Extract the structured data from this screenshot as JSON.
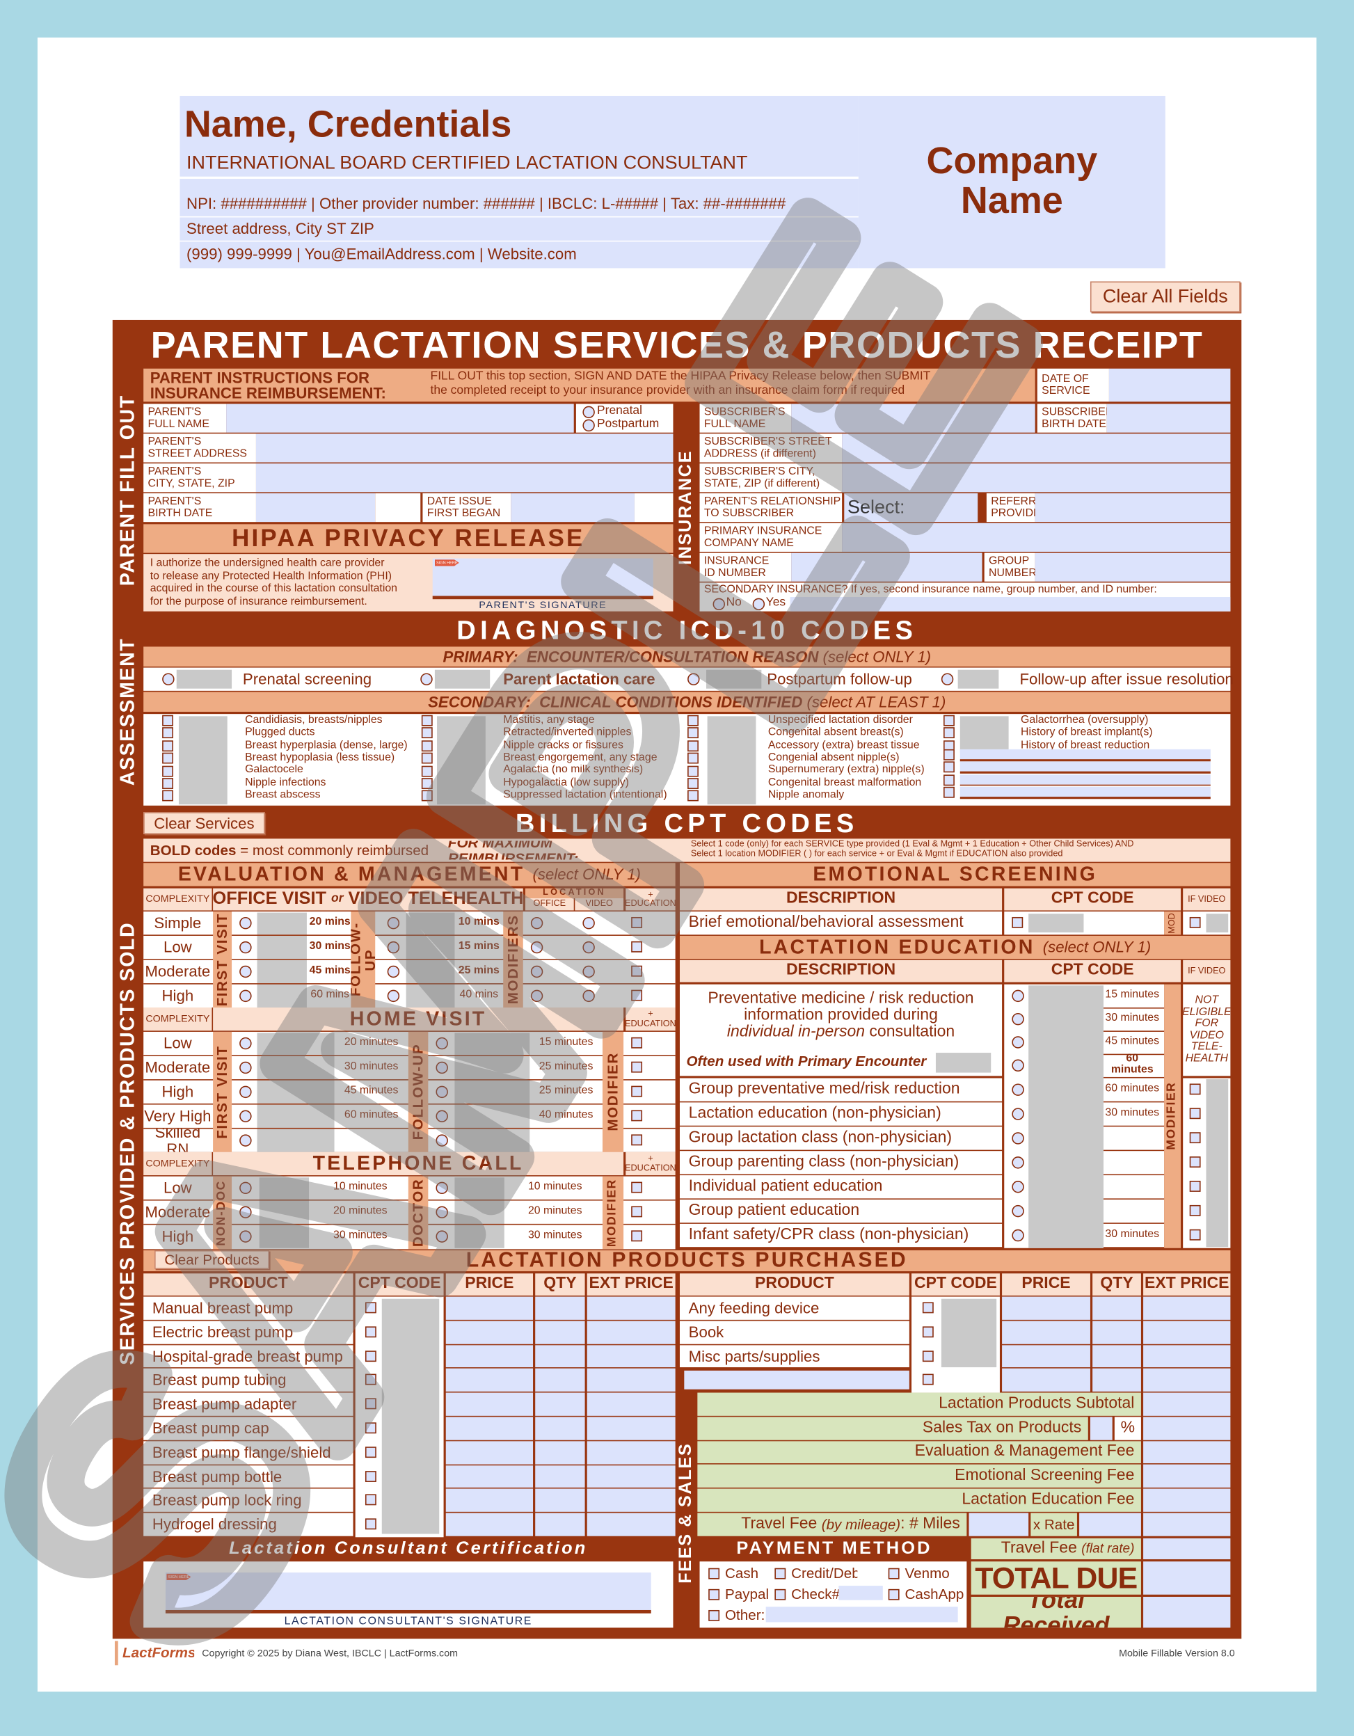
{
  "header": {
    "name": "Name, Credentials",
    "credentials": "INTERNATIONAL BOARD CERTIFIED LACTATION CONSULTANT",
    "ids": "NPI: ########## | Other provider number: ###### | IBCLC: L-##### | Tax:  ##-#######",
    "address": "Street address, City ST ZIP",
    "contact": "(999) 999-9999 | You@EmailAddress.com | Website.com"
  },
  "company": {
    "name": "Company\nName"
  },
  "buttons": {
    "clear_all": "Clear All Fields",
    "clear_services": "Clear Services",
    "clear_products": "Clear Products"
  },
  "title": "PARENT LACTATION SERVICES & PRODUCTS RECEIPT",
  "side": {
    "parent": "PARENT FILL OUT",
    "assessment": "ASSESSMENT",
    "services": "SERVICES PROVIDED & PRODUCTS SOLD",
    "insurance": "INSURANCE",
    "fees": "FEES & SALES"
  },
  "parent": {
    "instr_title": "PARENT INSTRUCTIONS FOR\nINSURANCE REIMBURSEMENT:",
    "instr_1": "FILL OUT this top section, SIGN AND DATE the HIPAA Privacy Release below, then SUBMIT",
    "instr_2": "the completed receipt to your insurance provider with an insurance claim form if required",
    "date_of_service": "DATE OF\nSERVICE",
    "full_name": "PARENT'S\nFULL NAME",
    "prenatal": "Prenatal",
    "postpartum": "Postpartum",
    "street": "PARENT'S\nSTREET ADDRESS",
    "city": "PARENT'S\nCITY, STATE, ZIP",
    "birth": "PARENT'S\nBIRTH DATE",
    "issue": "DATE ISSUE\nFIRST BEGAN"
  },
  "hipaa": {
    "title": "HIPAA PRIVACY RELEASE",
    "text": "I authorize the undersigned health care provider\nto release any Protected Health Information (PHI)\nacquired in the course of this lactation consultation\nfor the purpose of insurance reimbursement.",
    "sign_here": "SIGN HERE",
    "signature_label": "PARENT'S SIGNATURE"
  },
  "insurance": {
    "subscriber_name": "SUBSCRIBER'S\nFULL NAME",
    "subscriber_birth": "SUBSCRIBER'S\nBIRTH DATE",
    "subscriber_street": "SUBSCRIBER'S STREET\nADDRESS (if different)",
    "subscriber_city": "SUBSCRIBER'S CITY,\nSTATE, ZIP (if different)",
    "relationship": "PARENT'S RELATIONSHIP\nTO SUBSCRIBER",
    "relationship_value": "Select:",
    "referring": "REFERRING\nPROVIDER",
    "primary_company": "PRIMARY INSURANCE\nCOMPANY NAME",
    "id_number": "INSURANCE\nID NUMBER",
    "group_number": "GROUP\nNUMBER",
    "secondary_prompt": "SECONDARY INSURANCE?  If yes, second insurance name, group number, and ID number:",
    "no": "No",
    "yes": "Yes"
  },
  "diagnostic": {
    "title": "DIAGNOSTIC ICD-10 CODES",
    "primary_label": "PRIMARY:  ENCOUNTER/CONSULTATION REASON ",
    "primary_note": "(select ONLY 1)",
    "primary_options": [
      "Prenatal screening",
      "Parent lactation care",
      "Postpartum follow-up",
      "Follow-up after issue resolution"
    ],
    "secondary_label": "SECONDARY:  CLINICAL CONDITIONS IDENTIFIED ",
    "secondary_note": "(select AT LEAST 1)",
    "secondary_columns": [
      [
        "Candidiasis, breasts/nipples",
        "Plugged ducts",
        "Breast hyperplasia (dense, large)",
        "Breast hypoplasia (less tissue)",
        "Galactocele",
        "Nipple infections",
        "Breast abscess"
      ],
      [
        "Mastitis, any stage",
        "Retracted/inverted nipples",
        "Nipple cracks or fissures",
        "Breast engorgement, any stage",
        "Agalactia (no milk synthesis)",
        "Hypogalactia (low supply)",
        "Suppressed lactation (intentional)"
      ],
      [
        "Unspecified lactation disorder",
        "Congenital absent breast(s)",
        "Accessory (extra) breast tissue",
        "Congenial absent nipple(s)",
        "Supernumerary (extra) nipple(s)",
        "Congenital breast malformation",
        "Nipple anomaly"
      ],
      [
        "Galactorrhea (oversupply)",
        "History of breast implant(s)",
        "History of breast reduction"
      ]
    ]
  },
  "billing": {
    "title": "BILLING CPT CODES",
    "bold_codes": "BOLD codes",
    "bold_note": " = most commonly reimbursed",
    "max_label": "FOR MAXIMUM REIMBURSEMENT:",
    "max_line_1": "Select 1 code (only) for each SERVICE type provided (1 Eval & Mgmt + 1 Education + Other Child Services) AND",
    "max_line_2": "Select 1 location MODIFIER (              ) for each service +        or Eval & Mgmt if EDUCATION also provided"
  },
  "em": {
    "title": "EVALUATION & MANAGEMENT ",
    "note": "(select ONLY 1)",
    "complexity": "COMPLEXITY",
    "plus_education": "+\nEDUCATION",
    "office": {
      "title_a": "OFFICE VISIT ",
      "title_or": "or",
      "title_b": " VIDEO TELEHEALTH",
      "location": "LOCATION",
      "office": "OFFICE",
      "video": "VIDEO",
      "first_visit": "FIRST VISIT",
      "follow_up": "FOLLOW-UP",
      "modifiers": "MODIFIERS",
      "rows": [
        {
          "label": "Simple",
          "first": "20 mins",
          "follow": "10 mins"
        },
        {
          "label": "Low",
          "first": "30 mins",
          "follow": "15 mins"
        },
        {
          "label": "Moderate",
          "first": "45 mins",
          "follow": "25 mins"
        },
        {
          "label": "High",
          "first": "60 mins",
          "follow": "40 mins"
        }
      ]
    },
    "home": {
      "title": "HOME VISIT",
      "first_visit": "FIRST VISIT",
      "follow_up": "FOLLOW-UP",
      "modifier": "MODIFIER",
      "rows": [
        {
          "label": "Low",
          "first": "20 minutes",
          "follow": "15 minutes"
        },
        {
          "label": "Moderate",
          "first": "30 minutes",
          "follow": "25 minutes"
        },
        {
          "label": "High",
          "first": "45 minutes",
          "follow": "25 minutes"
        },
        {
          "label": "Very High",
          "first": "60 minutes",
          "follow": "40 minutes"
        },
        {
          "label": "Skilled RN",
          "first": "",
          "follow": ""
        }
      ]
    },
    "telephone": {
      "title": "TELEPHONE CALL",
      "non_doc": "NON-DOC",
      "doctor": "DOCTOR",
      "modifier": "MODIFIER",
      "rows": [
        {
          "label": "Low",
          "first": "10 minutes",
          "follow": "10 minutes"
        },
        {
          "label": "Moderate",
          "first": "20 minutes",
          "follow": "20 minutes"
        },
        {
          "label": "High",
          "first": "30 minutes",
          "follow": "30 minutes"
        }
      ]
    }
  },
  "emotional": {
    "title": "EMOTIONAL SCREENING",
    "description": "DESCRIPTION",
    "cpt_code": "CPT CODE",
    "if_video": "IF VIDEO",
    "item": "Brief emotional/behavioral assessment",
    "mod": "MOD"
  },
  "education": {
    "title": "LACTATION EDUCATION ",
    "note": "(select ONLY 1)",
    "description": "DESCRIPTION",
    "cpt_code": "CPT CODE",
    "if_video": "IF VIDEO",
    "modifier": "MODIFIER",
    "prev_line_1": "Preventative medicine / risk reduction",
    "prev_line_2": "information provided during",
    "prev_line_3a": "individual in-person",
    "prev_line_3b": " consultation",
    "often_used": "Often used with Primary Encounter",
    "not_eligible": "NOT\nELIGIBLE\nFOR\nVIDEO\nTELE-\nHEALTH",
    "minutes": [
      "15 minutes",
      "30 minutes",
      "45 minutes",
      "60 minutes",
      "60 minutes",
      "30 minutes",
      "",
      "",
      "",
      "",
      "30 minutes"
    ],
    "items": [
      "Group preventative med/risk reduction",
      "Lactation education (non-physician)",
      "Group lactation class (non-physician)",
      "Group parenting class (non-physician)",
      "Individual patient education",
      "Group patient education",
      "Infant safety/CPR class (non-physician)"
    ]
  },
  "products": {
    "title": "LACTATION PRODUCTS PURCHASED",
    "columns": [
      "PRODUCT",
      "CPT CODE",
      "PRICE",
      "QTY",
      "EXT PRICE"
    ],
    "left_items": [
      "Manual breast pump",
      "Electric breast pump",
      "Hospital-grade breast pump",
      "Breast pump tubing",
      "Breast pump adapter",
      "Breast pump cap",
      "Breast pump flange/shield",
      "Breast pump bottle",
      "Breast pump lock ring",
      "Hydrogel dressing"
    ],
    "right_items": [
      "Any feeding device",
      "Book",
      "Misc parts/supplies"
    ]
  },
  "fees": {
    "subtotal": "Lactation Products Subtotal",
    "sales_tax": "Sales Tax on Products",
    "percent": "%",
    "em_fee": "Evaluation & Management Fee",
    "emotional_fee": "Emotional Screening Fee",
    "education_fee": "Lactation Education Fee",
    "travel_mileage": "Travel Fee ",
    "travel_mileage_note": "(by mileage)",
    "travel_miles": ": # Miles",
    "rate": "x Rate",
    "travel_flat": "Travel Fee ",
    "travel_flat_note": "(flat rate)",
    "total_due": "TOTAL DUE",
    "total_received": "Total Received"
  },
  "payment": {
    "title": "PAYMENT METHOD",
    "options": [
      "Cash",
      "Credit/Debit",
      "Venmo",
      "Paypal",
      "Check#",
      "CashApp",
      "Other:"
    ]
  },
  "certification": {
    "title": "Lactation Consultant Certification",
    "sign_here": "SIGN HERE",
    "signature_label": "LACTATION CONSULTANT'S SIGNATURE"
  },
  "footer": {
    "logo": "LactForms",
    "copyright": "Copyright © 2025 by Diana West, IBCLC  |  LactForms.com",
    "version": "Mobile Fillable Version 8.0"
  },
  "watermark": "SAMPLE",
  "colors": {
    "brand_brown": "#993510",
    "header_salmon": "#eeac84",
    "peach": "#fbe0d0",
    "field": "#dce3fc",
    "fees_green": "#d8e5bd",
    "background": "#a9d8e4"
  }
}
